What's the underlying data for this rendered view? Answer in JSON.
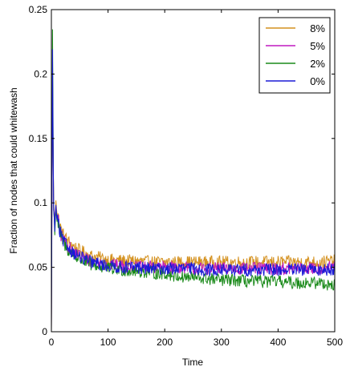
{
  "chart_data": {
    "type": "line",
    "xlabel": "Time",
    "ylabel": "Fraction of nodes that could whitewash",
    "xlim": [
      0,
      500
    ],
    "ylim": [
      0,
      0.25
    ],
    "x_ticks": [
      0,
      100,
      200,
      300,
      400,
      500
    ],
    "y_ticks": [
      0,
      0.05,
      0.1,
      0.15,
      0.2,
      0.25
    ],
    "x_tick_labels": [
      "0",
      "100",
      "200",
      "300",
      "400",
      "500"
    ],
    "y_tick_labels": [
      "0",
      "0.05",
      "0.1",
      "0.15",
      "0.2",
      "0.25"
    ],
    "grid": false,
    "legend_position": "top-right",
    "series": [
      {
        "name": "8%",
        "color": "#d4911f",
        "x": [
          0,
          2,
          4,
          6,
          8,
          10,
          15,
          20,
          25,
          30,
          40,
          50,
          60,
          70,
          80,
          90,
          100,
          125,
          150,
          175,
          200,
          225,
          250,
          275,
          300,
          325,
          350,
          375,
          400,
          425,
          450,
          475,
          500
        ],
        "y": [
          0.0,
          0.2,
          0.098,
          0.085,
          0.105,
          0.094,
          0.082,
          0.076,
          0.073,
          0.07,
          0.066,
          0.063,
          0.061,
          0.059,
          0.058,
          0.057,
          0.056,
          0.055,
          0.055,
          0.054,
          0.054,
          0.054,
          0.054,
          0.054,
          0.054,
          0.054,
          0.054,
          0.054,
          0.054,
          0.054,
          0.054,
          0.054,
          0.055
        ]
      },
      {
        "name": "5%",
        "color": "#c01ac0",
        "x": [
          0,
          2,
          4,
          6,
          8,
          10,
          15,
          20,
          25,
          30,
          40,
          50,
          60,
          70,
          80,
          90,
          100,
          125,
          150,
          175,
          200,
          225,
          250,
          275,
          300,
          325,
          350,
          375,
          400,
          425,
          450,
          475,
          500
        ],
        "y": [
          0.0,
          0.19,
          0.095,
          0.082,
          0.098,
          0.09,
          0.078,
          0.072,
          0.069,
          0.066,
          0.062,
          0.059,
          0.057,
          0.055,
          0.054,
          0.053,
          0.052,
          0.051,
          0.05,
          0.05,
          0.05,
          0.05,
          0.049,
          0.049,
          0.049,
          0.049,
          0.049,
          0.049,
          0.049,
          0.049,
          0.049,
          0.049,
          0.05
        ]
      },
      {
        "name": "2%",
        "color": "#1a8a1a",
        "x": [
          0,
          2,
          4,
          6,
          8,
          10,
          15,
          20,
          25,
          30,
          40,
          50,
          60,
          70,
          80,
          90,
          100,
          125,
          150,
          175,
          200,
          225,
          250,
          275,
          300,
          325,
          350,
          375,
          400,
          425,
          450,
          475,
          500
        ],
        "y": [
          0.0,
          0.235,
          0.092,
          0.08,
          0.096,
          0.088,
          0.076,
          0.07,
          0.066,
          0.063,
          0.059,
          0.056,
          0.054,
          0.052,
          0.051,
          0.05,
          0.049,
          0.048,
          0.047,
          0.046,
          0.045,
          0.043,
          0.042,
          0.041,
          0.04,
          0.04,
          0.039,
          0.039,
          0.039,
          0.038,
          0.038,
          0.038,
          0.036
        ]
      },
      {
        "name": "0%",
        "color": "#1a1ad6",
        "x": [
          0,
          2,
          4,
          6,
          8,
          10,
          15,
          20,
          25,
          30,
          40,
          50,
          60,
          70,
          80,
          90,
          100,
          125,
          150,
          175,
          200,
          225,
          250,
          275,
          300,
          325,
          350,
          375,
          400,
          425,
          450,
          475,
          500
        ],
        "y": [
          0.0,
          0.215,
          0.093,
          0.081,
          0.097,
          0.089,
          0.077,
          0.071,
          0.068,
          0.065,
          0.061,
          0.058,
          0.056,
          0.054,
          0.053,
          0.052,
          0.051,
          0.05,
          0.05,
          0.049,
          0.049,
          0.049,
          0.049,
          0.048,
          0.048,
          0.048,
          0.048,
          0.048,
          0.048,
          0.048,
          0.048,
          0.048,
          0.049
        ]
      }
    ]
  }
}
